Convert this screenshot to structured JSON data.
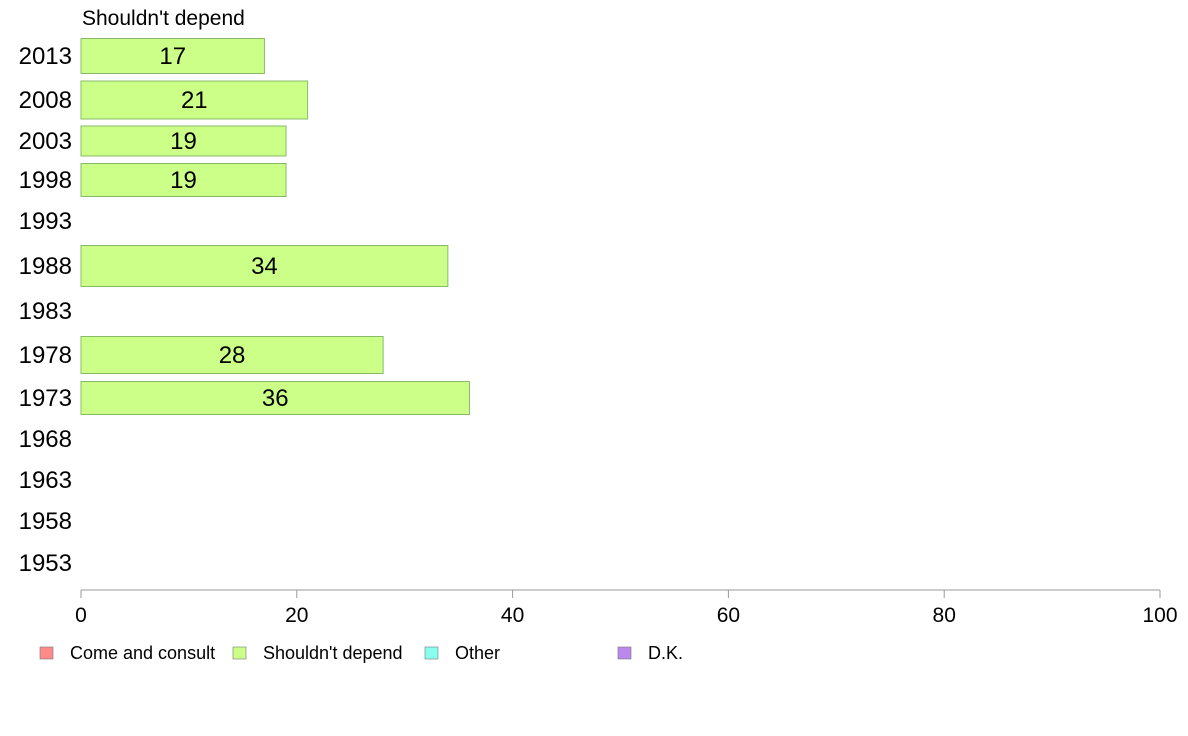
{
  "chart_data": {
    "type": "bar",
    "orientation": "horizontal",
    "title": "Shouldn't depend",
    "categories": [
      "2013",
      "2008",
      "2003",
      "1998",
      "1993",
      "1988",
      "1983",
      "1978",
      "1973",
      "1968",
      "1963",
      "1958",
      "1953"
    ],
    "series": [
      {
        "name": "Shouldn't depend",
        "color": "#ccff88",
        "stroke": "#88bb66",
        "values": [
          17,
          21,
          19,
          19,
          null,
          34,
          null,
          28,
          36,
          null,
          null,
          null,
          null
        ]
      }
    ],
    "xlim": [
      0,
      100
    ],
    "xticks": [
      0,
      20,
      40,
      60,
      80,
      100
    ],
    "grid": false,
    "legend": {
      "position": "bottom",
      "entries": [
        {
          "label": "Come and consult",
          "color": "#ff8a8a"
        },
        {
          "label": "Shouldn't depend",
          "color": "#ccff88"
        },
        {
          "label": "Other",
          "color": "#88ffee"
        },
        {
          "label": "D.K.",
          "color": "#bb88ee"
        }
      ]
    }
  }
}
